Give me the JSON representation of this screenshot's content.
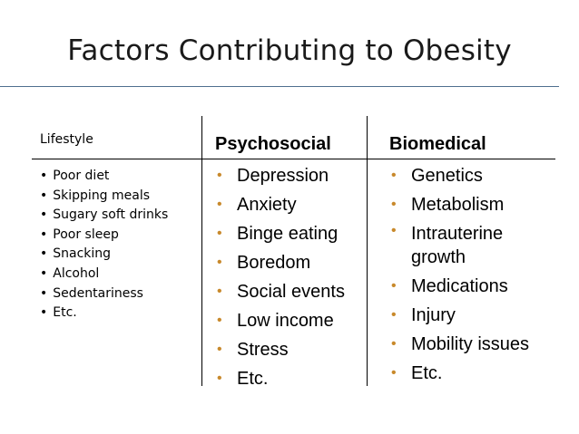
{
  "title": "Factors Contributing to Obesity",
  "bullet_color": "#c8892b",
  "lifestyle": {
    "heading": "Lifestyle",
    "bullet": "•",
    "items": [
      "Poor diet",
      "Skipping meals",
      "Sugary soft drinks",
      "Poor sleep",
      "Snacking",
      "Alcohol",
      "Sedentariness",
      "Etc."
    ]
  },
  "psychosocial": {
    "heading": "Psychosocial",
    "bullet": "•",
    "items": [
      "Depression",
      "Anxiety",
      "Binge eating",
      "Boredom",
      "Social events",
      "Low income",
      "Stress",
      "Etc."
    ]
  },
  "biomedical": {
    "heading": "Biomedical",
    "bullet": "•",
    "items": [
      "Genetics",
      "Metabolism",
      "Intrauterine growth",
      "Medications",
      "Injury",
      "Mobility issues",
      "Etc."
    ]
  }
}
